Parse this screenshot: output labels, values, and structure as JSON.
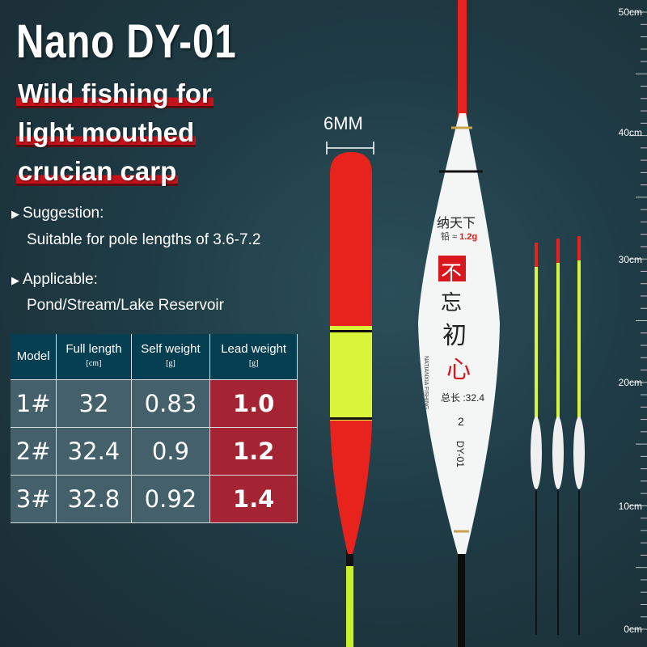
{
  "title": "Nano DY-01",
  "subtitle": [
    "Wild fishing for",
    "light mouthed",
    "crucian carp"
  ],
  "suggestion": {
    "label": "Suggestion:",
    "text": "Suitable for pole lengths of 3.6-7.2"
  },
  "applicable": {
    "label": "Applicable:",
    "text": "Pond/Stream/Lake Reservoir"
  },
  "table": {
    "headers": [
      {
        "label": "Model",
        "unit": ""
      },
      {
        "label": "Full length",
        "unit": "[cm]"
      },
      {
        "label": "Self weight",
        "unit": "[g]"
      },
      {
        "label": "Lead weight",
        "unit": "[g]"
      }
    ],
    "rows": [
      [
        "1#",
        "32",
        "0.83",
        "1.0"
      ],
      [
        "2#",
        "32.4",
        "0.9",
        "1.2"
      ],
      [
        "3#",
        "32.8",
        "0.92",
        "1.4"
      ]
    ]
  },
  "dimension_label": "6MM",
  "float_label": {
    "brand_cn": "纳天下",
    "lead_prefix": "铅 ≈",
    "lead_value": "1.2g",
    "logo_chars": [
      "不",
      "忘",
      "初",
      "心"
    ],
    "brand_en": "NATIANXIA FISHING",
    "length": "总长 :32.4",
    "number": "2",
    "model": "DY-01"
  },
  "ruler": [
    "50cm",
    "40cm",
    "30cm",
    "20cm",
    "10cm",
    "0cm"
  ],
  "colors": {
    "red": "#c4121a",
    "lead_cell": "#a52434",
    "header": "#063f52",
    "cell": "#43606b",
    "float_yellow": "#d9f53a"
  }
}
